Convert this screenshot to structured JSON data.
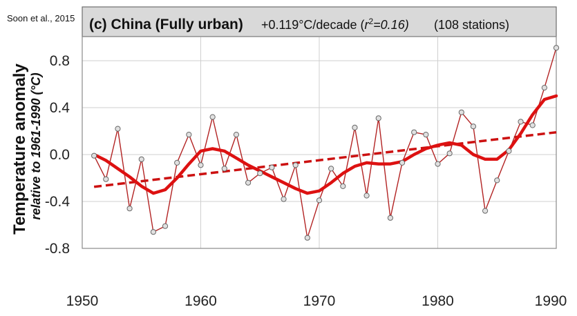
{
  "credit": "Soon et  al., 2015",
  "title_panel": {
    "label": "(c) China (Fully urban)",
    "trend_prefix": "+0.119°C/decade (",
    "trend_r": "r",
    "trend_sup": "2",
    "trend_suffix": "=0.16)",
    "stations": "(108 stations)"
  },
  "chart_data": {
    "type": "line",
    "ylabel": "Temperature anomaly",
    "ylabel_sub": "relative to 1961-1990 (°C)",
    "xlabel": "",
    "xlim": [
      1950,
      1990
    ],
    "ylim": [
      -0.8,
      0.8
    ],
    "x_ticks": [
      1950,
      1960,
      1970,
      1980,
      1990
    ],
    "y_ticks": [
      0.8,
      0.4,
      0.0,
      -0.4,
      -0.8
    ],
    "y_tick_labels": [
      "0.8",
      "0.4",
      "0.0",
      "-0.4",
      "-0.8"
    ],
    "grid": true,
    "colors": {
      "annual": "#b22222",
      "smoothed": "#dd1111",
      "trend": "#cc1111",
      "marker_fill": "#e0e0e0",
      "marker_edge": "#666666"
    },
    "series": [
      {
        "style": "annual-with-markers",
        "x": [
          1951,
          1952,
          1953,
          1954,
          1955,
          1956,
          1957,
          1958,
          1959,
          1960,
          1961,
          1962,
          1963,
          1964,
          1965,
          1966,
          1967,
          1968,
          1969,
          1970,
          1971,
          1972,
          1973,
          1974,
          1975,
          1976,
          1977,
          1978,
          1979,
          1980,
          1981,
          1982,
          1983,
          1984,
          1985,
          1986,
          1987,
          1988,
          1989,
          1990
        ],
        "values": [
          -0.01,
          -0.21,
          0.22,
          -0.46,
          -0.04,
          -0.66,
          -0.61,
          -0.07,
          0.17,
          -0.09,
          0.32,
          -0.12,
          0.17,
          -0.24,
          -0.16,
          -0.11,
          -0.38,
          -0.09,
          -0.71,
          -0.39,
          -0.12,
          -0.27,
          0.23,
          -0.35,
          0.31,
          -0.54,
          -0.07,
          0.19,
          0.17,
          -0.08,
          0.01,
          0.36,
          0.24,
          -0.48,
          -0.22,
          0.03,
          0.28,
          0.25,
          0.57,
          0.91
        ]
      },
      {
        "style": "smoothed",
        "x": [
          1951,
          1952,
          1953,
          1954,
          1955,
          1956,
          1957,
          1958,
          1959,
          1960,
          1961,
          1962,
          1963,
          1964,
          1965,
          1966,
          1967,
          1968,
          1969,
          1970,
          1971,
          1972,
          1973,
          1974,
          1975,
          1976,
          1977,
          1978,
          1979,
          1980,
          1981,
          1982,
          1983,
          1984,
          1985,
          1986,
          1987,
          1988,
          1989,
          1990
        ],
        "values": [
          0.0,
          -0.05,
          -0.12,
          -0.19,
          -0.27,
          -0.33,
          -0.3,
          -0.2,
          -0.08,
          0.03,
          0.05,
          0.03,
          -0.03,
          -0.09,
          -0.14,
          -0.19,
          -0.24,
          -0.29,
          -0.33,
          -0.31,
          -0.24,
          -0.16,
          -0.1,
          -0.07,
          -0.08,
          -0.08,
          -0.06,
          0.0,
          0.05,
          0.08,
          0.1,
          0.08,
          0.0,
          -0.04,
          -0.04,
          0.04,
          0.18,
          0.34,
          0.47,
          0.5
        ]
      },
      {
        "style": "trend",
        "x": [
          1951,
          1990
        ],
        "values": [
          -0.275,
          0.19
        ]
      }
    ]
  }
}
